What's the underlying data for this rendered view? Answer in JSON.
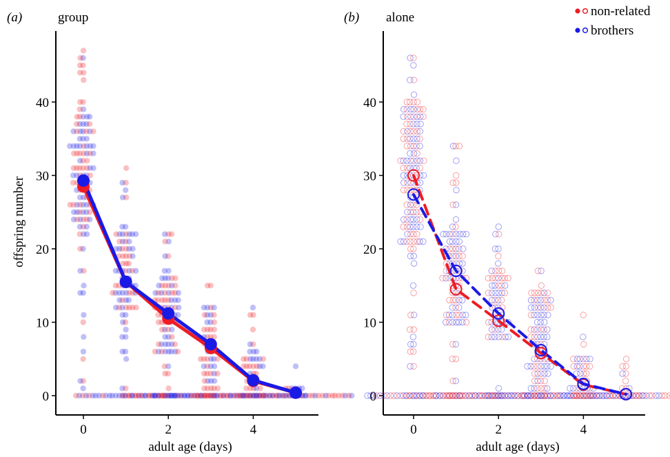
{
  "legend": {
    "entries": [
      {
        "label": "non-related",
        "color": "#ee1c24"
      },
      {
        "label": "brothers",
        "color": "#1a1ae6"
      }
    ],
    "placement": "top-right"
  },
  "colors": {
    "nonrelated": "#ee1c24",
    "brothers": "#1a1ae6"
  },
  "chart_data": [
    {
      "type": "scatter",
      "panel_label": "(a)",
      "title": "group",
      "xlabel": "adult age (days)",
      "ylabel": "offspring number",
      "xlim": [
        -0.55,
        5.55
      ],
      "ylim": [
        -1.5,
        49
      ],
      "x_ticks": [
        "0",
        "2",
        "4"
      ],
      "y_ticks": [
        "0",
        "10",
        "20",
        "30",
        "40"
      ],
      "marker_style": "filled",
      "mean_line_style": "solid",
      "series": [
        {
          "name": "non-related",
          "x": [
            0,
            1,
            2,
            3,
            4,
            5
          ],
          "y": [
            28.5,
            15.5,
            10.5,
            6.5,
            2.0,
            0.4
          ]
        },
        {
          "name": "brothers",
          "x": [
            0,
            1,
            2,
            3,
            4,
            5
          ],
          "y": [
            29.3,
            15.5,
            11.2,
            7.0,
            2.1,
            0.4
          ]
        }
      ],
      "raw_points": [
        {
          "x": 0,
          "y_range": [
            1,
            47
          ],
          "bulk": [
            22,
            38
          ]
        },
        {
          "x": 1,
          "y_range": [
            0,
            31
          ],
          "bulk": [
            12,
            22
          ]
        },
        {
          "x": 2,
          "y_range": [
            0,
            22
          ],
          "bulk": [
            6,
            16
          ]
        },
        {
          "x": 3,
          "y_range": [
            0,
            15
          ],
          "bulk": [
            0,
            12
          ]
        },
        {
          "x": 4,
          "y_range": [
            0,
            12
          ],
          "bulk": [
            0,
            6
          ]
        },
        {
          "x": 5,
          "y_range": [
            0,
            4
          ],
          "bulk": [
            0,
            1
          ]
        }
      ]
    },
    {
      "type": "scatter",
      "panel_label": "(b)",
      "title": "alone",
      "xlabel": "adult age (days)",
      "ylabel": "",
      "xlim": [
        -0.55,
        5.55
      ],
      "ylim": [
        -1.5,
        49
      ],
      "x_ticks": [
        "0",
        "2",
        "4"
      ],
      "y_ticks": [
        "0",
        "10",
        "20",
        "30",
        "40"
      ],
      "marker_style": "open",
      "mean_line_style": "dashed",
      "series": [
        {
          "name": "non-related",
          "x": [
            0,
            1,
            2,
            3,
            4,
            5
          ],
          "y": [
            30.0,
            14.5,
            10.2,
            5.8,
            1.5,
            0.2
          ]
        },
        {
          "name": "brothers",
          "x": [
            0,
            1,
            2,
            3,
            4,
            5
          ],
          "y": [
            27.4,
            17.0,
            11.2,
            6.2,
            1.6,
            0.2
          ]
        }
      ],
      "raw_points": [
        {
          "x": 0,
          "y_range": [
            0,
            46
          ],
          "bulk": [
            21,
            40
          ]
        },
        {
          "x": 1,
          "y_range": [
            0,
            34
          ],
          "bulk": [
            10,
            22
          ]
        },
        {
          "x": 2,
          "y_range": [
            0,
            23
          ],
          "bulk": [
            8,
            17
          ]
        },
        {
          "x": 3,
          "y_range": [
            0,
            17
          ],
          "bulk": [
            0,
            14
          ]
        },
        {
          "x": 4,
          "y_range": [
            0,
            11
          ],
          "bulk": [
            0,
            5
          ]
        },
        {
          "x": 5,
          "y_range": [
            0,
            5
          ],
          "bulk": [
            0,
            1
          ]
        }
      ]
    }
  ]
}
